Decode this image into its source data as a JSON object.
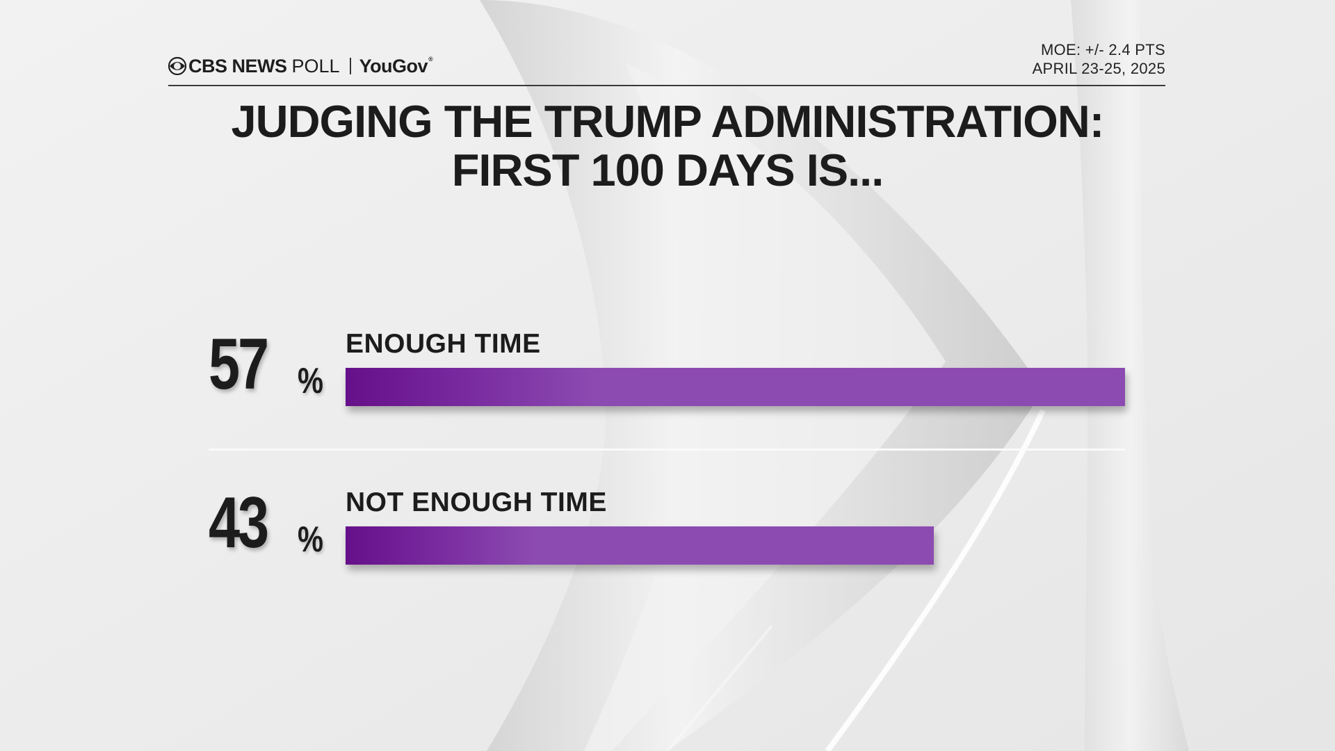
{
  "header": {
    "brand_primary": "CBS NEWS",
    "brand_secondary": "POLL",
    "partner": "YouGov",
    "partner_mark": "®",
    "moe": "MOE: +/- 2.4 PTS",
    "dates": "APRIL 23-25, 2025"
  },
  "title": {
    "line1": "JUDGING THE TRUMP ADMINISTRATION:",
    "line2": "FIRST 100 DAYS IS..."
  },
  "chart_data": {
    "type": "bar",
    "orientation": "horizontal",
    "categories": [
      "ENOUGH TIME",
      "NOT ENOUGH TIME"
    ],
    "values": [
      57,
      43
    ],
    "value_labels": [
      "57",
      "43"
    ],
    "unit": "%",
    "xlim": [
      0,
      57
    ],
    "bar_color": "#8c4bb1",
    "bar_gradient_start": "#660f8a",
    "grid": false,
    "legend": "none"
  },
  "colors": {
    "background": "#ececec",
    "text": "#1c1c1c",
    "accent": "#8c4bb1"
  }
}
